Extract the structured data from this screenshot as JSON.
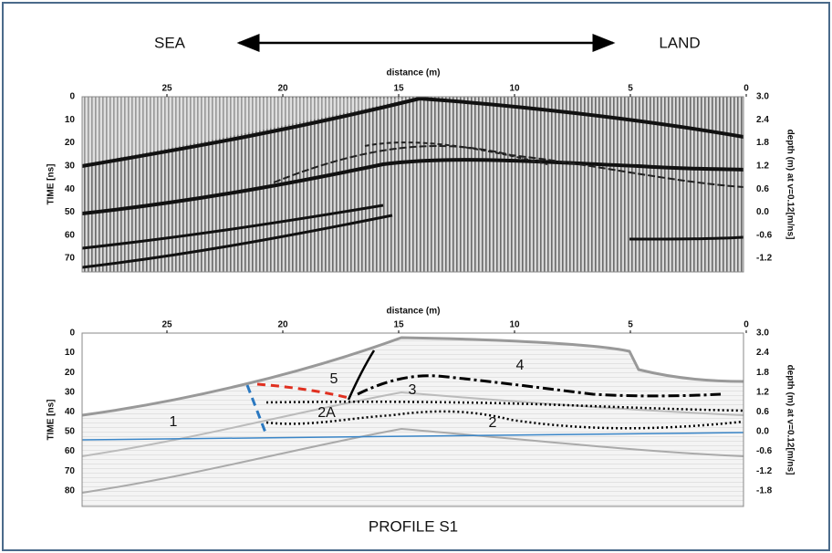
{
  "header": {
    "left": "SEA",
    "right": "LAND"
  },
  "panels": [
    {
      "x_axis_title": "distance (m)",
      "x_ticks": [
        "25",
        "20",
        "15",
        "10",
        "5",
        "0"
      ],
      "y_axis_title": "TIME [ns]",
      "y_ticks": [
        "0",
        "10",
        "20",
        "30",
        "40",
        "50",
        "60",
        "70"
      ],
      "y2_axis_title": "depth (m) at v=0.12[m/ns]",
      "y2_ticks": [
        "3.0",
        "2.4",
        "1.8",
        "1.2",
        "0.6",
        "0.0",
        "-0.6",
        "-1.2"
      ]
    },
    {
      "x_axis_title": "distance (m)",
      "x_ticks": [
        "25",
        "20",
        "15",
        "10",
        "5",
        "0"
      ],
      "y_axis_title": "TIME [ns]",
      "y_ticks": [
        "0",
        "10",
        "20",
        "30",
        "40",
        "50",
        "60",
        "70",
        "80"
      ],
      "y2_axis_title": "depth (m) at v=0.12[m/ns]",
      "y2_ticks": [
        "3.0",
        "2.4",
        "1.8",
        "1.2",
        "0.6",
        "0.0",
        "-0.6",
        "-1.2",
        "-1.8"
      ],
      "labels": [
        "1",
        "2",
        "2A",
        "3",
        "4",
        "5"
      ]
    }
  ],
  "caption": "PROFILE S1"
}
